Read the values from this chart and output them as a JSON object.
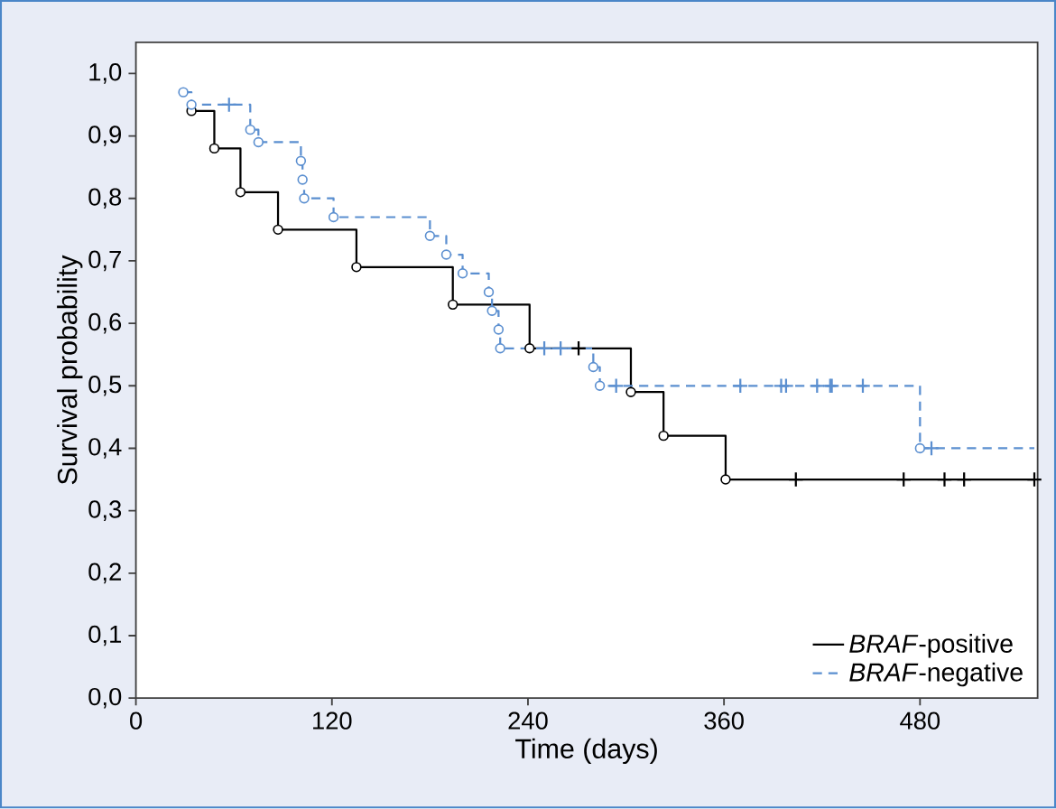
{
  "chart_data": {
    "type": "step",
    "xlabel": "Time (days)",
    "ylabel": "Survival probability",
    "xlim": [
      0,
      552
    ],
    "ylim": [
      0,
      1.05
    ],
    "xticks": [
      0,
      120,
      240,
      360,
      480
    ],
    "yticks": [
      {
        "value": 0,
        "label": "0,0"
      },
      {
        "value": 0.1,
        "label": "0,1"
      },
      {
        "value": 0.2,
        "label": "0,2"
      },
      {
        "value": 0.3,
        "label": "0,3"
      },
      {
        "value": 0.4,
        "label": "0,4"
      },
      {
        "value": 0.5,
        "label": "0,5"
      },
      {
        "value": 0.6,
        "label": "0,6"
      },
      {
        "value": 0.7,
        "label": "0,7"
      },
      {
        "value": 0.8,
        "label": "0,8"
      },
      {
        "value": 0.9,
        "label": "0,9"
      },
      {
        "value": 1.0,
        "label": "1,0"
      }
    ],
    "legend": "bottom right",
    "series": [
      {
        "name": "*BRAF*-positive",
        "color": "#000000",
        "line_style": "solid",
        "x": [
          34,
          48,
          64,
          87,
          135,
          194,
          241,
          303,
          323,
          361,
          550
        ],
        "values": [
          0.94,
          0.88,
          0.81,
          0.75,
          0.69,
          0.63,
          0.56,
          0.49,
          0.42,
          0.35,
          0.35
        ]
      },
      {
        "name": "*BRAF*-negative",
        "color": "#5b8fd0",
        "line_style": "dashed",
        "x": [
          29,
          34,
          70,
          75,
          101,
          102,
          103,
          121,
          180,
          190,
          200,
          216,
          218,
          222,
          223,
          280,
          284,
          480,
          550
        ],
        "values": [
          0.97,
          0.95,
          0.91,
          0.89,
          0.86,
          0.83,
          0.8,
          0.77,
          0.74,
          0.71,
          0.68,
          0.65,
          0.62,
          0.59,
          0.56,
          0.53,
          0.5,
          0.4,
          0.4
        ]
      },
      {
        "type": "scatter",
        "color": "#000000",
        "marker": "circle",
        "x": [
          34,
          48,
          64,
          87,
          135,
          194,
          241,
          303,
          323,
          361
        ],
        "values": [
          0.94,
          0.88,
          0.81,
          0.75,
          0.69,
          0.63,
          0.56,
          0.49,
          0.42,
          0.35
        ]
      },
      {
        "type": "scatter",
        "color": "#5b8fd0",
        "marker": "circle",
        "x": [
          29,
          34,
          70,
          75,
          101,
          102,
          103,
          121,
          180,
          190,
          200,
          216,
          218,
          222,
          223,
          280,
          284,
          480
        ],
        "values": [
          0.97,
          0.95,
          0.91,
          0.89,
          0.86,
          0.83,
          0.8,
          0.77,
          0.74,
          0.71,
          0.68,
          0.65,
          0.62,
          0.59,
          0.56,
          0.53,
          0.5,
          0.4
        ]
      },
      {
        "type": "scatter",
        "color": "#000000",
        "marker": "cross",
        "x": [
          271,
          404,
          470,
          495,
          507,
          550
        ],
        "values": [
          0.56,
          0.35,
          0.35,
          0.35,
          0.35,
          0.35
        ]
      },
      {
        "type": "scatter",
        "color": "#5b8fd0",
        "marker": "cross",
        "x": [
          57,
          250,
          260,
          294,
          370,
          395,
          398,
          417,
          425,
          426,
          445,
          487
        ],
        "values": [
          0.95,
          0.56,
          0.56,
          0.5,
          0.5,
          0.5,
          0.5,
          0.5,
          0.5,
          0.5,
          0.5,
          0.4
        ]
      }
    ]
  }
}
